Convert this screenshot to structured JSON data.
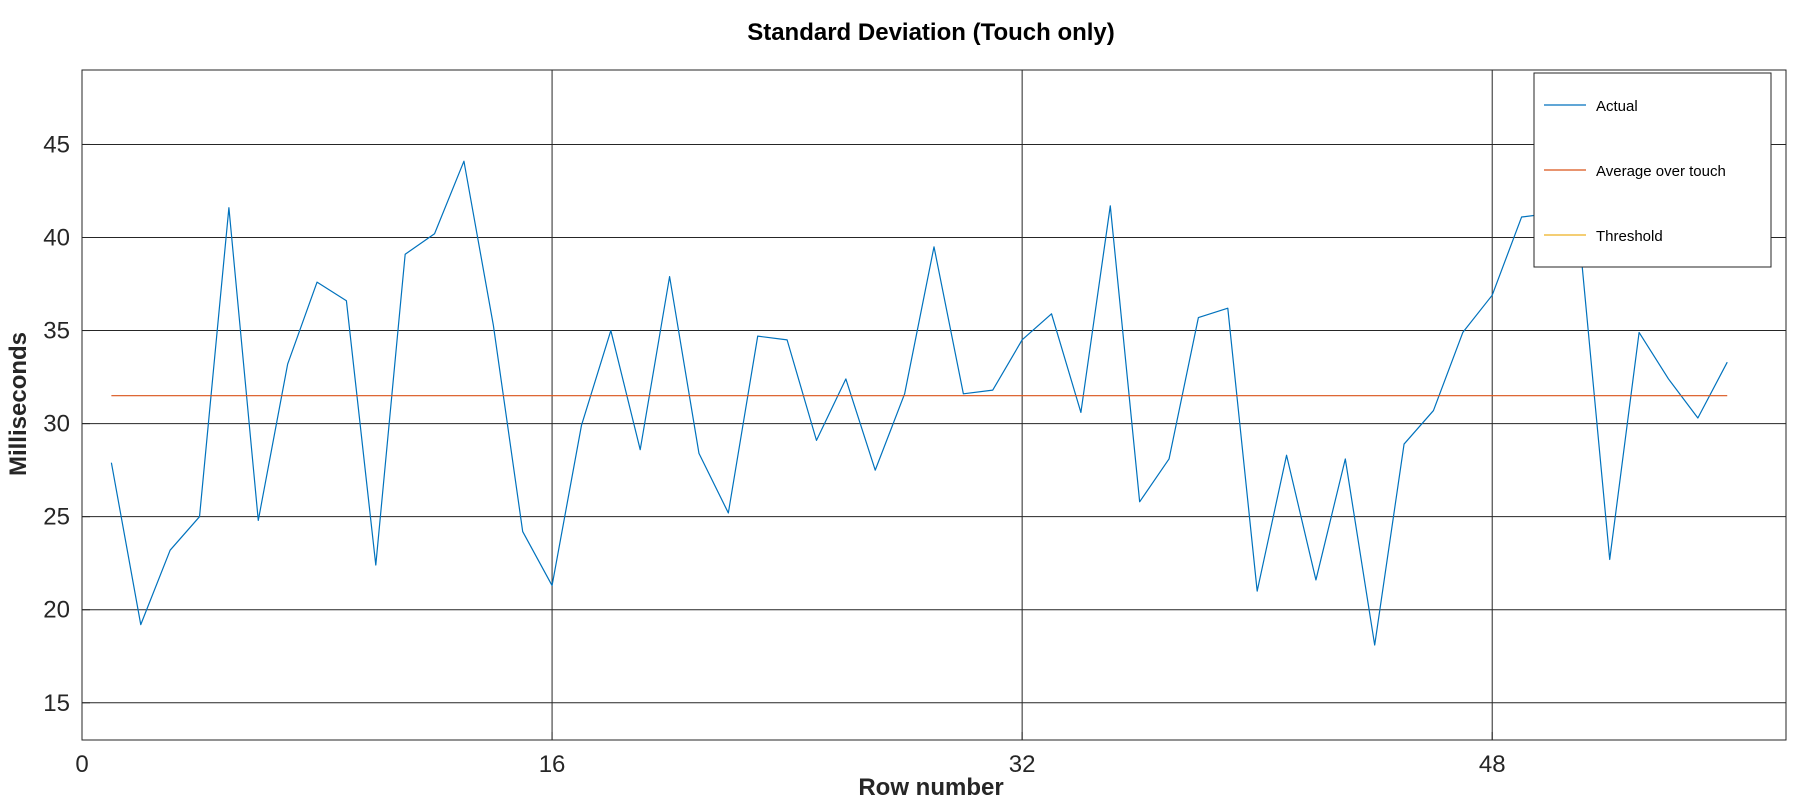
{
  "chart_data": {
    "type": "line",
    "title": "Standard Deviation (Touch only)",
    "xlabel": "Row number",
    "ylabel": "Milliseconds",
    "xlim": [
      0,
      58
    ],
    "ylim": [
      13,
      49
    ],
    "xticks": [
      0,
      16,
      32,
      48
    ],
    "yticks": [
      15,
      20,
      25,
      30,
      35,
      40,
      45
    ],
    "grid": true,
    "legend_position": "top-right",
    "series": [
      {
        "name": "Actual",
        "color": "#0072bd",
        "x": [
          1,
          2,
          3,
          4,
          5,
          6,
          7,
          8,
          9,
          10,
          11,
          12,
          13,
          14,
          15,
          16,
          17,
          18,
          19,
          20,
          21,
          22,
          23,
          24,
          25,
          26,
          27,
          28,
          29,
          30,
          31,
          32,
          33,
          34,
          35,
          36,
          37,
          38,
          39,
          40,
          41,
          42,
          43,
          44,
          45,
          46,
          47,
          48,
          49,
          50,
          51,
          52,
          53,
          54,
          55,
          56
        ],
        "y": [
          27.9,
          19.2,
          23.2,
          25.0,
          41.6,
          24.8,
          33.2,
          37.6,
          36.6,
          22.4,
          39.1,
          40.2,
          44.1,
          35.3,
          24.2,
          21.3,
          29.9,
          35.0,
          28.6,
          37.9,
          28.4,
          25.2,
          34.7,
          34.5,
          29.1,
          32.4,
          27.5,
          31.6,
          39.5,
          31.6,
          31.8,
          34.5,
          35.9,
          30.6,
          41.7,
          25.8,
          28.1,
          35.7,
          36.2,
          21.0,
          28.3,
          21.6,
          28.1,
          18.1,
          28.9,
          30.7,
          34.9,
          36.9,
          41.1,
          41.3,
          39.5,
          22.7,
          34.9,
          32.4,
          30.3,
          33.3
        ]
      },
      {
        "name": "Average over touch",
        "color": "#d95319",
        "x": [
          1,
          56
        ],
        "y": [
          31.5,
          31.5
        ]
      },
      {
        "name": "Threshold",
        "color": "#edb120",
        "x": [],
        "y": []
      }
    ]
  }
}
